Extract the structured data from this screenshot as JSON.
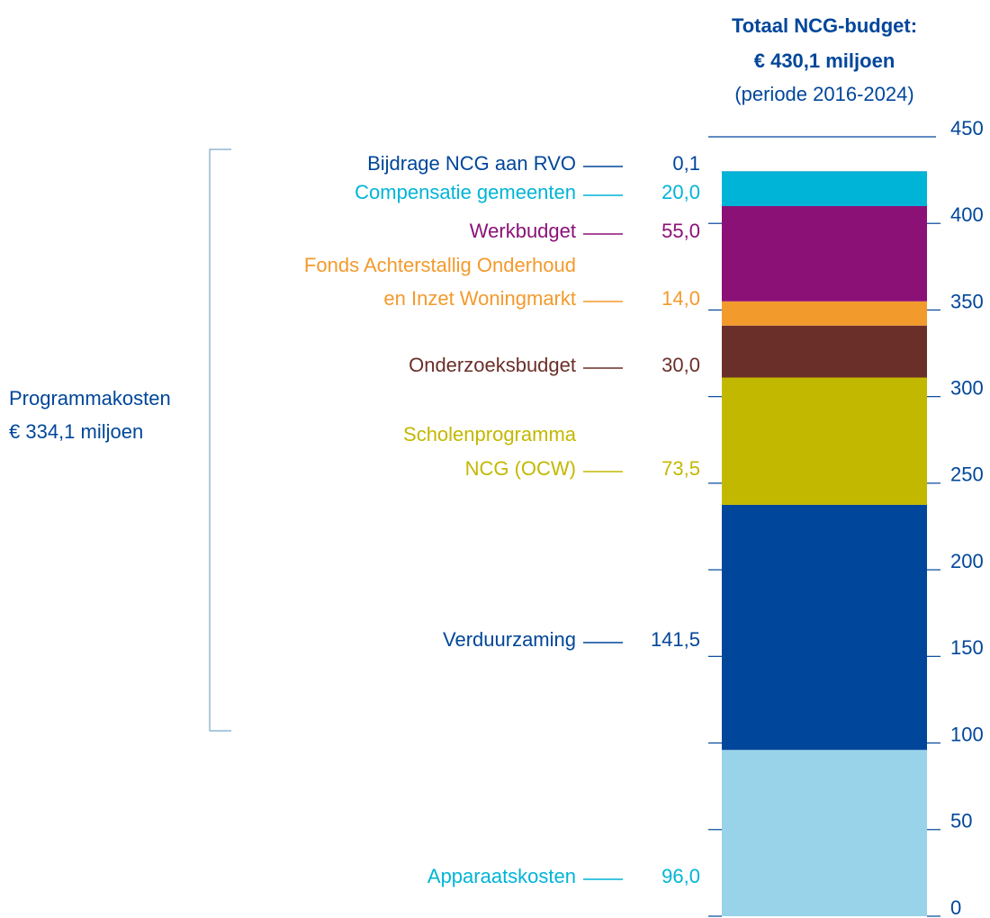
{
  "chart_data": {
    "type": "stacked-bar",
    "title": [
      "Totaal NCG-budget:",
      "€ 430,1 miljoen"
    ],
    "subtitle": "(periode 2016-2024)",
    "categories": [
      "Apparaatskosten",
      "Verduurzaming",
      [
        "Scholenprogramma",
        "NCG (OCW)"
      ],
      "Onderzoeksbudget",
      [
        "Fonds Achterstallig Onderhoud",
        "en Inzet Woningmarkt"
      ],
      "Werkbudget",
      "Compensatie gemeenten",
      "Bijdrage NCG aan RVO"
    ],
    "values": [
      96.0,
      141.5,
      73.5,
      30.0,
      14.0,
      55.0,
      20.0,
      0.1
    ],
    "value_labels": [
      "96,0",
      "141,5",
      "73,5",
      "30,0",
      "14,0",
      "55,0",
      "20,0",
      "0,1"
    ],
    "colors": [
      "#98d3e9",
      "#00469a",
      "#c3b800",
      "#6b2f29",
      "#f39a2c",
      "#8b1177",
      "#00b4d7",
      "#00469a"
    ],
    "label_colors": [
      "#00b4d7",
      "#00469a",
      "#c3b800",
      "#6b2f29",
      "#f39a2c",
      "#8b1177",
      "#00b4d7",
      "#00469a"
    ],
    "annotation": [
      "Programmakosten",
      "€ 334,1 miljoen"
    ],
    "ylim": [
      0,
      450
    ],
    "yticks": [
      0,
      50,
      100,
      150,
      200,
      250,
      300,
      350,
      400,
      450
    ]
  }
}
